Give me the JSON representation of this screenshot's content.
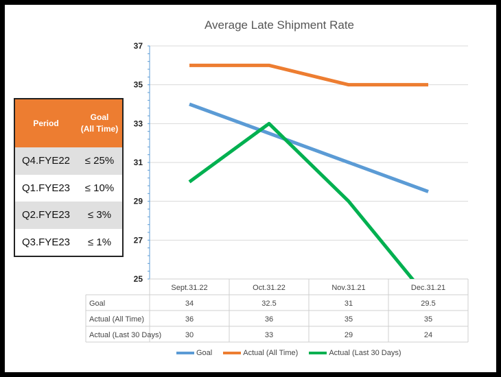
{
  "chart_data": {
    "type": "line",
    "title": "Average Late Shipment Rate",
    "categories": [
      "Sept.31.22",
      "Oct.31.22",
      "Nov.31.21",
      "Dec.31.21"
    ],
    "ylim": [
      25,
      37
    ],
    "yticks": [
      25,
      27,
      29,
      31,
      33,
      35,
      37
    ],
    "grid": true,
    "legend": "bottom",
    "series": [
      {
        "name": "Goal",
        "color": "#5b9bd5",
        "values": [
          34,
          32.5,
          31,
          29.5
        ],
        "labels": [
          "34",
          "32.5",
          "31",
          "29.5"
        ]
      },
      {
        "name": "Actual (All Time)",
        "color": "#ed7d31",
        "values": [
          36,
          36,
          35,
          35
        ],
        "labels": [
          "36",
          "36",
          "35",
          "35"
        ]
      },
      {
        "name": "Actual (Last 30 Days)",
        "color": "#00b050",
        "values": [
          30,
          33,
          29,
          24
        ],
        "labels": [
          "30",
          "33",
          "29",
          "24"
        ]
      }
    ]
  },
  "goal_table": {
    "header": {
      "period": "Period",
      "goal_line1": "Goal",
      "goal_line2": "(All Time)"
    },
    "rows": [
      {
        "period": "Q4.FYE22",
        "goal": "≤ 25%"
      },
      {
        "period": "Q1.FYE23",
        "goal": "≤ 10%"
      },
      {
        "period": "Q2.FYE23",
        "goal": "≤ 3%"
      },
      {
        "period": "Q3.FYE23",
        "goal": "≤ 1%"
      }
    ]
  }
}
